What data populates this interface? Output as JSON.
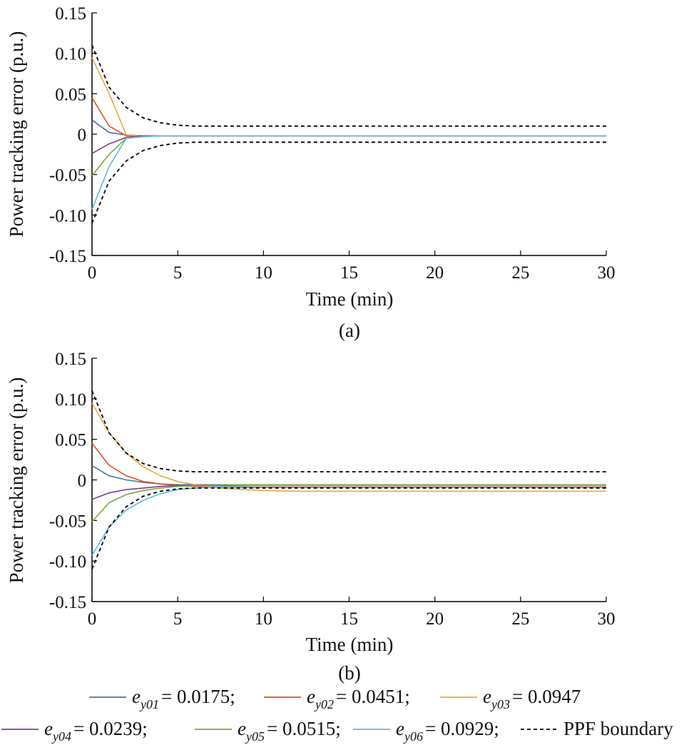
{
  "chart_data": [
    {
      "type": "line",
      "caption": "(a)",
      "xlabel": "Time (min)",
      "ylabel": "Power tracking error (p.u.)",
      "xlim": [
        0,
        30
      ],
      "ylim": [
        -0.15,
        0.15
      ],
      "xticks": [
        "0",
        "5",
        "10",
        "15",
        "20",
        "25",
        "30"
      ],
      "yticks": [
        "0.15",
        "0.10",
        "0.05",
        "0",
        "-0.05",
        "-0.10",
        "-0.15"
      ],
      "series": [
        {
          "name": "ey01",
          "color": "#4472B0",
          "x": [
            0,
            1,
            2,
            3,
            4,
            5,
            30
          ],
          "values": [
            0.0175,
            0.002,
            -0.001,
            -0.002,
            -0.002,
            -0.002,
            -0.002
          ]
        },
        {
          "name": "ey02",
          "color": "#D9532A",
          "x": [
            0,
            1,
            2,
            3,
            4,
            5,
            30
          ],
          "values": [
            0.0451,
            0.01,
            -0.002,
            -0.002,
            -0.002,
            -0.002,
            -0.002
          ]
        },
        {
          "name": "ey03",
          "color": "#E6A83A",
          "x": [
            0,
            1,
            2,
            3,
            4,
            5,
            30
          ],
          "values": [
            0.0947,
            0.05,
            -0.001,
            -0.002,
            -0.002,
            -0.002,
            -0.002
          ]
        },
        {
          "name": "ey04",
          "color": "#7B3C93",
          "x": [
            0,
            1,
            2,
            3,
            4,
            5,
            30
          ],
          "values": [
            -0.0239,
            -0.012,
            -0.004,
            -0.002,
            -0.002,
            -0.002,
            -0.002
          ]
        },
        {
          "name": "ey05",
          "color": "#7AAA3C",
          "x": [
            0,
            1,
            2,
            3,
            4,
            5,
            30
          ],
          "values": [
            -0.0515,
            -0.025,
            -0.005,
            -0.003,
            -0.002,
            -0.002,
            -0.002
          ]
        },
        {
          "name": "ey06",
          "color": "#5FB8DE",
          "x": [
            0,
            1,
            2,
            3,
            4,
            5,
            30
          ],
          "values": [
            -0.0929,
            -0.04,
            -0.005,
            -0.003,
            -0.002,
            -0.002,
            -0.002
          ]
        },
        {
          "name": "PPF boundary",
          "color": "#000000",
          "dashed": true,
          "x": [
            0,
            1,
            2,
            3,
            4,
            5,
            6,
            7,
            8,
            30
          ],
          "values": [
            0.11,
            0.058,
            0.033,
            0.02,
            0.014,
            0.011,
            0.01,
            0.01,
            0.01,
            0.01
          ]
        },
        {
          "name": "PPF boundary",
          "color": "#000000",
          "dashed": true,
          "x": [
            0,
            1,
            2,
            3,
            4,
            5,
            6,
            7,
            8,
            30
          ],
          "values": [
            -0.11,
            -0.058,
            -0.033,
            -0.02,
            -0.014,
            -0.011,
            -0.01,
            -0.01,
            -0.01,
            -0.01
          ]
        }
      ]
    },
    {
      "type": "line",
      "caption": "(b)",
      "xlabel": "Time (min)",
      "ylabel": "Power tracking error (p.u.)",
      "xlim": [
        0,
        30
      ],
      "ylim": [
        -0.15,
        0.15
      ],
      "xticks": [
        "0",
        "5",
        "10",
        "15",
        "20",
        "25",
        "30"
      ],
      "yticks": [
        "0.15",
        "0.10",
        "0.05",
        "0",
        "-0.05",
        "-0.10",
        "-0.15"
      ],
      "series": [
        {
          "name": "ey01",
          "color": "#4472B0",
          "x": [
            0,
            1,
            2,
            3,
            4,
            5,
            6,
            8,
            10,
            15,
            30
          ],
          "values": [
            0.0175,
            0.005,
            0.0,
            -0.003,
            -0.005,
            -0.006,
            -0.006,
            -0.006,
            -0.006,
            -0.006,
            -0.006
          ]
        },
        {
          "name": "ey02",
          "color": "#D9532A",
          "x": [
            0,
            1,
            2,
            3,
            4,
            5,
            6,
            8,
            10,
            15,
            30
          ],
          "values": [
            0.0451,
            0.018,
            0.005,
            -0.002,
            -0.005,
            -0.007,
            -0.008,
            -0.009,
            -0.009,
            -0.009,
            -0.009
          ]
        },
        {
          "name": "ey03",
          "color": "#E6A83A",
          "x": [
            0,
            1,
            2,
            3,
            4,
            5,
            6,
            7,
            8,
            10,
            12,
            15,
            30
          ],
          "values": [
            0.0947,
            0.058,
            0.033,
            0.016,
            0.005,
            -0.002,
            -0.006,
            -0.009,
            -0.011,
            -0.013,
            -0.014,
            -0.014,
            -0.014
          ]
        },
        {
          "name": "ey04",
          "color": "#7B3C93",
          "x": [
            0,
            1,
            2,
            3,
            4,
            5,
            6,
            8,
            10,
            15,
            30
          ],
          "values": [
            -0.0239,
            -0.016,
            -0.012,
            -0.01,
            -0.008,
            -0.007,
            -0.007,
            -0.007,
            -0.007,
            -0.007,
            -0.007
          ]
        },
        {
          "name": "ey05",
          "color": "#7AAA3C",
          "x": [
            0,
            1,
            2,
            3,
            4,
            5,
            6,
            8,
            10,
            15,
            30
          ],
          "values": [
            -0.0515,
            -0.028,
            -0.018,
            -0.013,
            -0.01,
            -0.008,
            -0.007,
            -0.006,
            -0.006,
            -0.006,
            -0.006
          ]
        },
        {
          "name": "ey06",
          "color": "#5FB8DE",
          "x": [
            0,
            1,
            2,
            3,
            4,
            5,
            6,
            8,
            10,
            15,
            30
          ],
          "values": [
            -0.0929,
            -0.058,
            -0.037,
            -0.025,
            -0.017,
            -0.012,
            -0.01,
            -0.008,
            -0.007,
            -0.007,
            -0.007
          ]
        },
        {
          "name": "PPF boundary",
          "color": "#000000",
          "dashed": true,
          "x": [
            0,
            1,
            2,
            3,
            4,
            5,
            6,
            7,
            8,
            30
          ],
          "values": [
            0.11,
            0.058,
            0.033,
            0.02,
            0.014,
            0.011,
            0.01,
            0.01,
            0.01,
            0.01
          ]
        },
        {
          "name": "PPF boundary",
          "color": "#000000",
          "dashed": true,
          "x": [
            0,
            1,
            2,
            3,
            4,
            5,
            6,
            7,
            8,
            30
          ],
          "values": [
            -0.11,
            -0.058,
            -0.033,
            -0.02,
            -0.014,
            -0.011,
            -0.01,
            -0.01,
            -0.01,
            -0.01
          ]
        }
      ]
    }
  ],
  "legend": {
    "items": [
      {
        "color": "#4472B0",
        "var": "e",
        "sub": "y01",
        "value": "= 0.0175;"
      },
      {
        "color": "#D9532A",
        "var": "e",
        "sub": "y02",
        "value": "= 0.0451;"
      },
      {
        "color": "#E6A83A",
        "var": "e",
        "sub": "y03",
        "value": "= 0.0947"
      },
      {
        "color": "#7B3C93",
        "var": "e",
        "sub": "y04",
        "value": "= 0.0239;"
      },
      {
        "color": "#7AAA3C",
        "var": "e",
        "sub": "y05",
        "value": "= 0.0515;"
      },
      {
        "color": "#5FB8DE",
        "var": "e",
        "sub": "y06",
        "value": "= 0.0929;"
      },
      {
        "color": "#000000",
        "dashed": true,
        "label": "PPF boundary"
      }
    ]
  }
}
